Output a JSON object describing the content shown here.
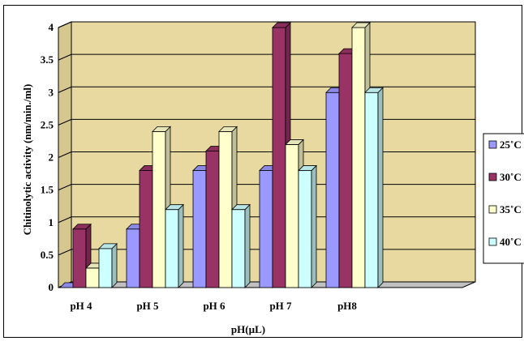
{
  "chart_data": {
    "type": "bar",
    "categories": [
      "pH 4",
      "pH 5",
      "pH 6",
      "pH 7",
      "pH8"
    ],
    "series": [
      {
        "name": "25˚C",
        "values": [
          0,
          0.9,
          1.8,
          1.8,
          3.0
        ],
        "color": "#9999ff"
      },
      {
        "name": "30˚C",
        "values": [
          0.9,
          1.8,
          2.1,
          4.0,
          3.6
        ],
        "color": "#993366"
      },
      {
        "name": "35˚C",
        "values": [
          0.3,
          2.4,
          2.4,
          2.2,
          4.0
        ],
        "color": "#ffffcc"
      },
      {
        "name": "40˚C",
        "values": [
          0.6,
          1.2,
          1.2,
          1.8,
          3.0
        ],
        "color": "#ccffff"
      }
    ],
    "y_ticks": [
      "0",
      "0.5",
      "1",
      "1.5",
      "2",
      "2.5",
      "3",
      "3.5",
      "4"
    ],
    "ylim": [
      0,
      4
    ],
    "xlabel": "pH(µL)",
    "ylabel": "Chitinolytic activity (nm/min./ml)",
    "grid": true,
    "legend_position": "right",
    "wall_color": "#e8d9a0"
  }
}
